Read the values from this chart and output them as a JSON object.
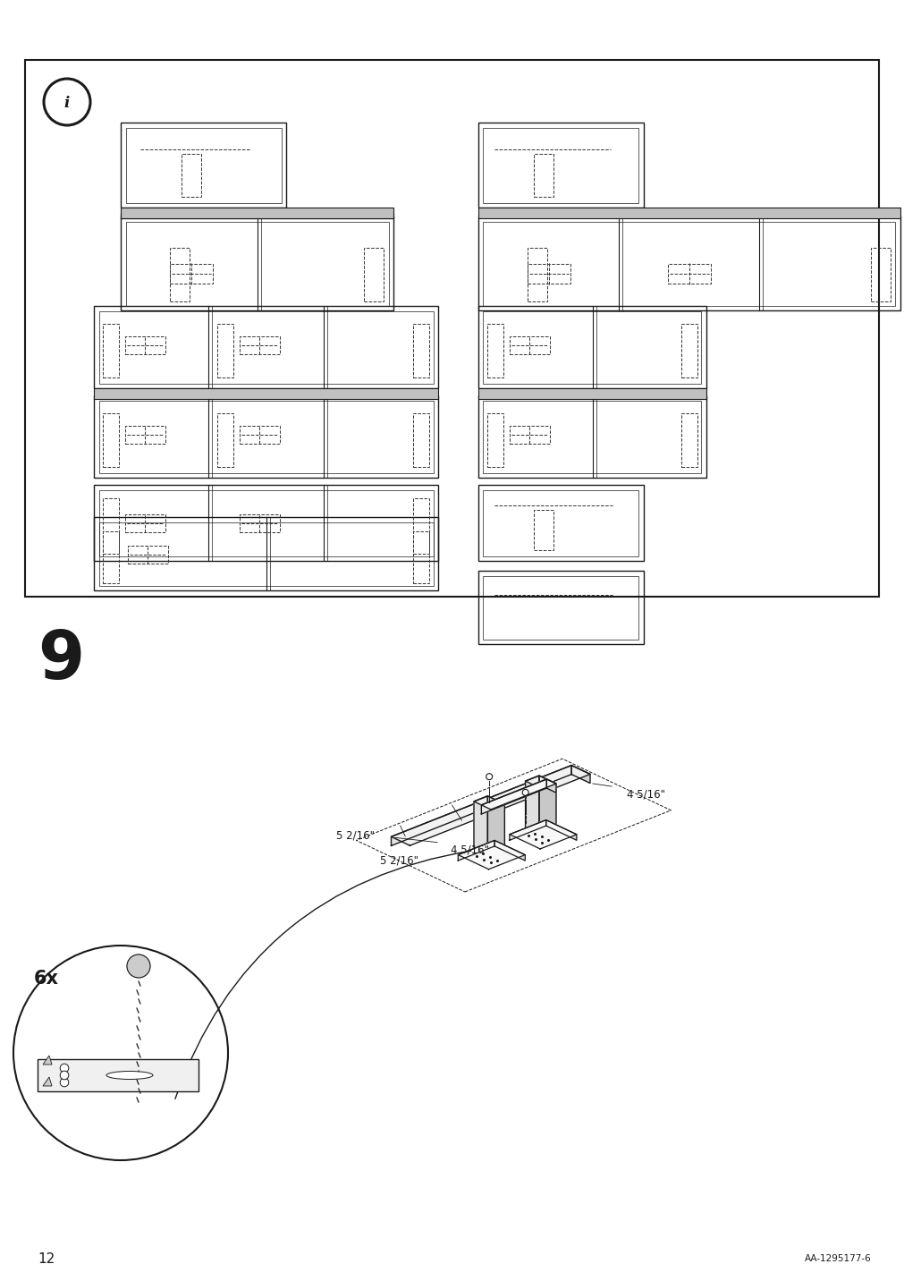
{
  "page_width": 10.12,
  "page_height": 14.32,
  "bg_color": "#ffffff",
  "line_color": "#1a1a1a",
  "dashed_color": "#333333",
  "step_number": "9",
  "page_number": "12",
  "ref_code": "AA-1295177-6",
  "measurements": {
    "label1": "5 2/16\"",
    "label2": "4 5/16\"",
    "label3": "5 2/16\"",
    "label4": "4 5/16\""
  },
  "multiplier": "6x"
}
